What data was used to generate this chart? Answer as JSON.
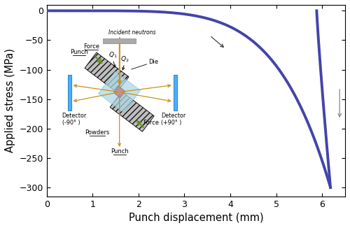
{
  "title": "",
  "xlabel": "Punch displacement (mm)",
  "ylabel": "Applied stress (MPa)",
  "xlim": [
    0,
    6.5
  ],
  "ylim": [
    -315,
    10
  ],
  "yticks": [
    0,
    -50,
    -100,
    -150,
    -200,
    -250,
    -300
  ],
  "xticks": [
    0,
    1,
    2,
    3,
    4,
    5,
    6
  ],
  "curve_color": "#4444aa",
  "background_color": "#ffffff",
  "schematic": {
    "die_color": "#b8b8b8",
    "die_hatch": "////",
    "powder_color": "#add8e6",
    "sample_color": "#c09090",
    "punch_color": "#6b8e23",
    "detector_color": "#44aaff",
    "beam_color": "#c8921a",
    "neutron_color": "#aaaaaa",
    "text_color": "#000000"
  }
}
